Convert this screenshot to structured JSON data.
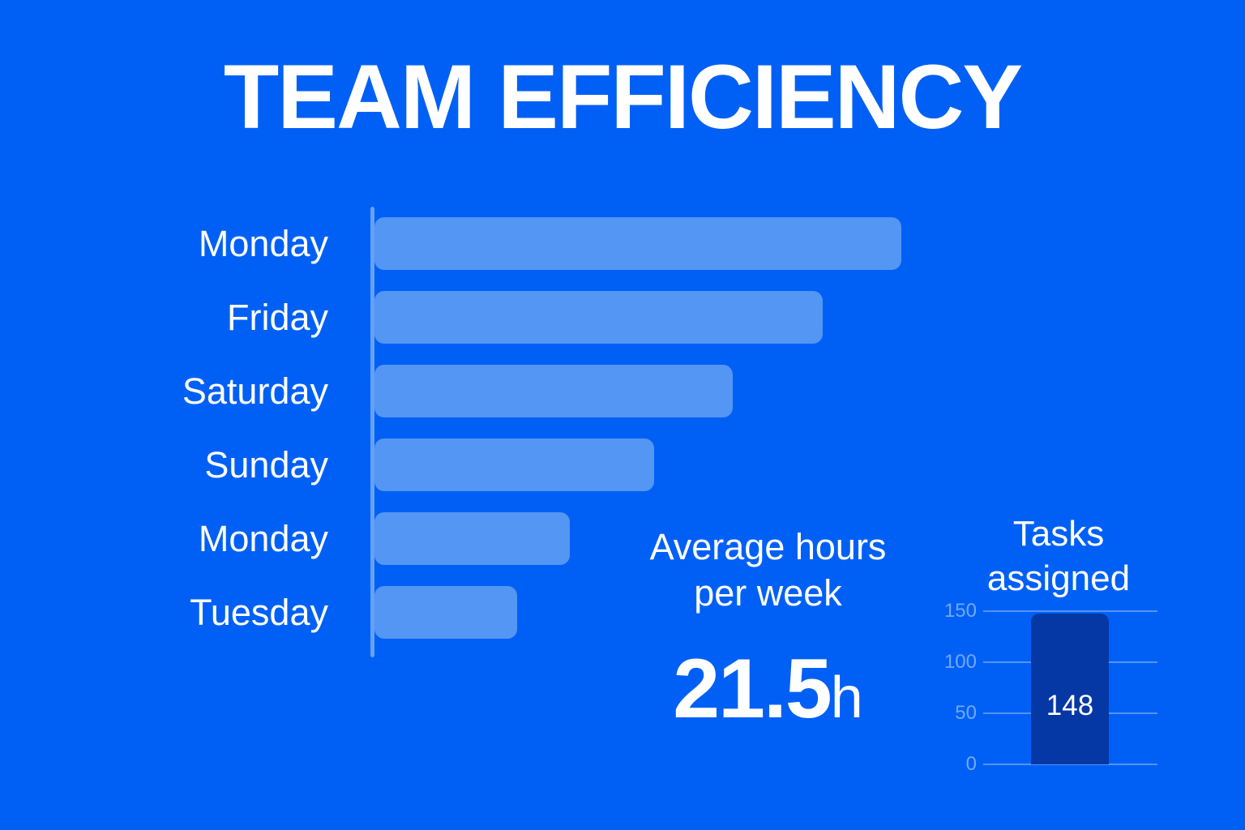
{
  "title": "TEAM EFFICIENCY",
  "colors": {
    "background": "#0060F5",
    "bar_light": "#5496F4",
    "bar_dark": "#0538A5",
    "axis": "#66A0F6",
    "text": "#FFFFFF"
  },
  "stat": {
    "line1": "Average hours",
    "line2": "per week",
    "value": "21.5",
    "unit": "h"
  },
  "chart_data": [
    {
      "type": "bar",
      "orientation": "horizontal",
      "categories": [
        "Monday",
        "Friday",
        "Saturday",
        "Sunday",
        "Monday",
        "Tuesday"
      ],
      "values": [
        100,
        85,
        68,
        53,
        37,
        27
      ],
      "value_units": "relative bar length, percent of longest bar (no numeric axis shown in image)",
      "title": "",
      "xlabel": "",
      "ylabel": "",
      "grid": false,
      "bar_color": "#5496F4",
      "annotation": "Average hours per week 21.5h"
    },
    {
      "type": "bar",
      "orientation": "vertical",
      "title": "Tasks assigned",
      "categories": [
        "Tasks assigned"
      ],
      "values": [
        148
      ],
      "bar_label": "148",
      "ylim": [
        0,
        150
      ],
      "yticks": [
        0,
        50,
        100,
        150
      ],
      "grid": true,
      "legend_position": "none",
      "bar_color": "#0538A5"
    }
  ]
}
